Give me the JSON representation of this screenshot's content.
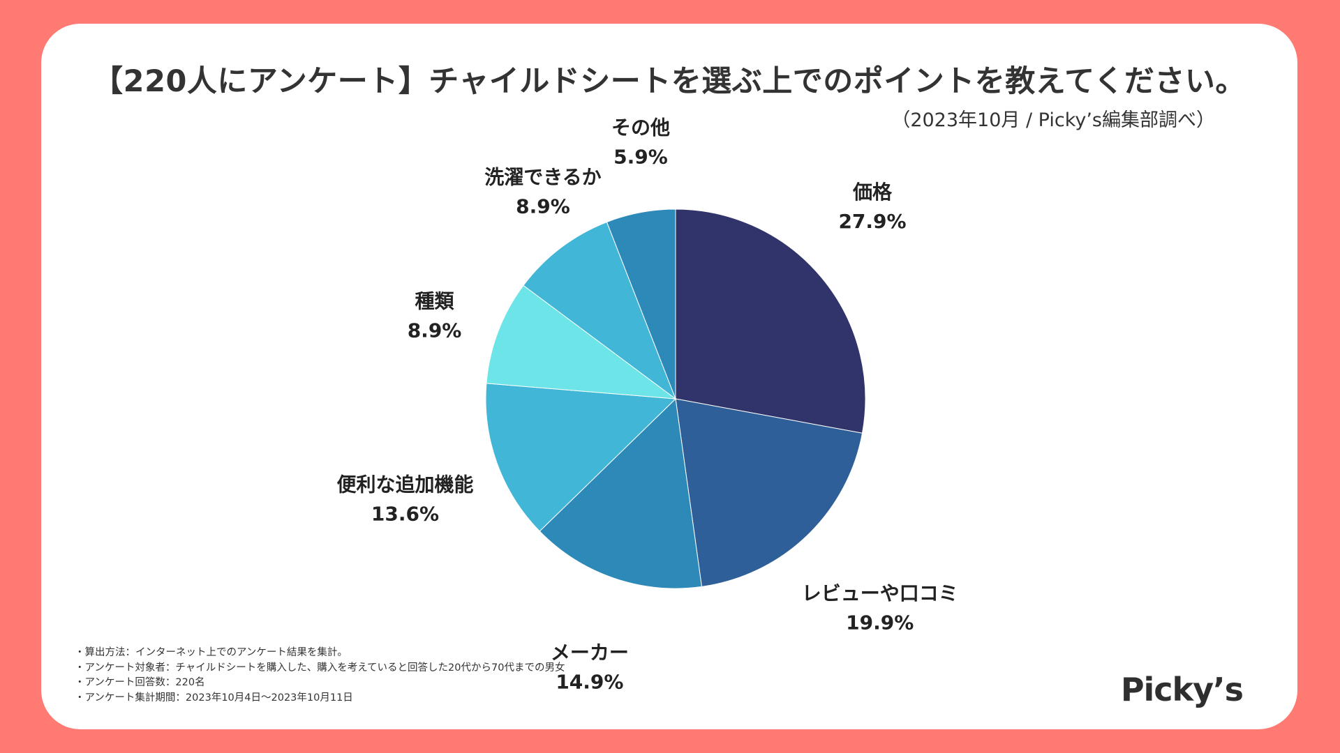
{
  "title": "【220人にアンケート】チャイルドシートを選ぶ上でのポイントを教えてください。",
  "subtitle": "（2023年10月 / Picky’s編集部調べ）",
  "chart_data": {
    "type": "pie",
    "title": "【220人にアンケート】チャイルドシートを選ぶ上でのポイントを教えてください。",
    "unit": "%",
    "slices": [
      {
        "label": "価格",
        "value": 27.9,
        "value_label": "27.9%",
        "color": "#30346B"
      },
      {
        "label": "レビューや口コミ",
        "value": 19.9,
        "value_label": "19.9%",
        "color": "#2F5F98"
      },
      {
        "label": "メーカー",
        "value": 14.9,
        "value_label": "14.9%",
        "color": "#2D8AB8"
      },
      {
        "label": "便利な追加機能",
        "value": 13.6,
        "value_label": "13.6%",
        "color": "#42B6D6"
      },
      {
        "label": "種類",
        "value": 8.9,
        "value_label": "8.9%",
        "color": "#6CE4E8"
      },
      {
        "label": "洗濯できるか",
        "value": 8.9,
        "value_label": "8.9%",
        "color": "#42B6D6"
      },
      {
        "label": "その他",
        "value": 5.9,
        "value_label": "5.9%",
        "color": "#2D8AB8"
      }
    ]
  },
  "notes": [
    "・算出方法：インターネット上でのアンケート結果を集計。",
    "・アンケート対象者：チャイルドシートを購入した、購入を考えていると回答した20代から70代までの男女",
    "・アンケート回答数：220名",
    "・アンケート集計期間：2023年10月4日〜2023年10月11日"
  ],
  "logo": "Picky’s",
  "colors": {
    "background": "#FF7A73",
    "card": "#FFFFFF"
  }
}
